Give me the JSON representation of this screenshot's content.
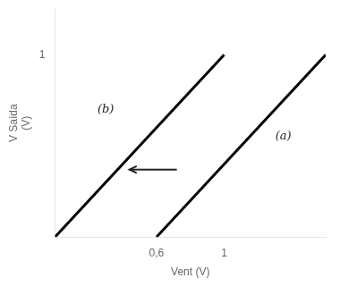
{
  "chart_data": {
    "type": "line",
    "xlabel": "Vent (V)",
    "ylabel": [
      "V Saída",
      "(V)"
    ],
    "xlim": [
      0,
      1.6
    ],
    "ylim": [
      0,
      1.25
    ],
    "xticks": [
      {
        "value": 0.6,
        "label": "0,6"
      },
      1
    ],
    "yticks": [
      1
    ],
    "grid": false,
    "series": [
      {
        "x": [
          0.0,
          1.0
        ],
        "values": [
          0.0,
          1.0
        ],
        "color": "#000000"
      },
      {
        "x": [
          0.6,
          1.6
        ],
        "values": [
          0.0,
          1.0
        ],
        "color": "#000000"
      }
    ],
    "annotations": [
      {
        "text": "(a)",
        "x": 1.35,
        "y": 0.55
      },
      {
        "text": "(b)",
        "x": 0.3,
        "y": 0.7
      },
      {
        "x": 0.72,
        "y": 0.37,
        "x_end": 0.44,
        "y_end": 0.37
      }
    ]
  }
}
